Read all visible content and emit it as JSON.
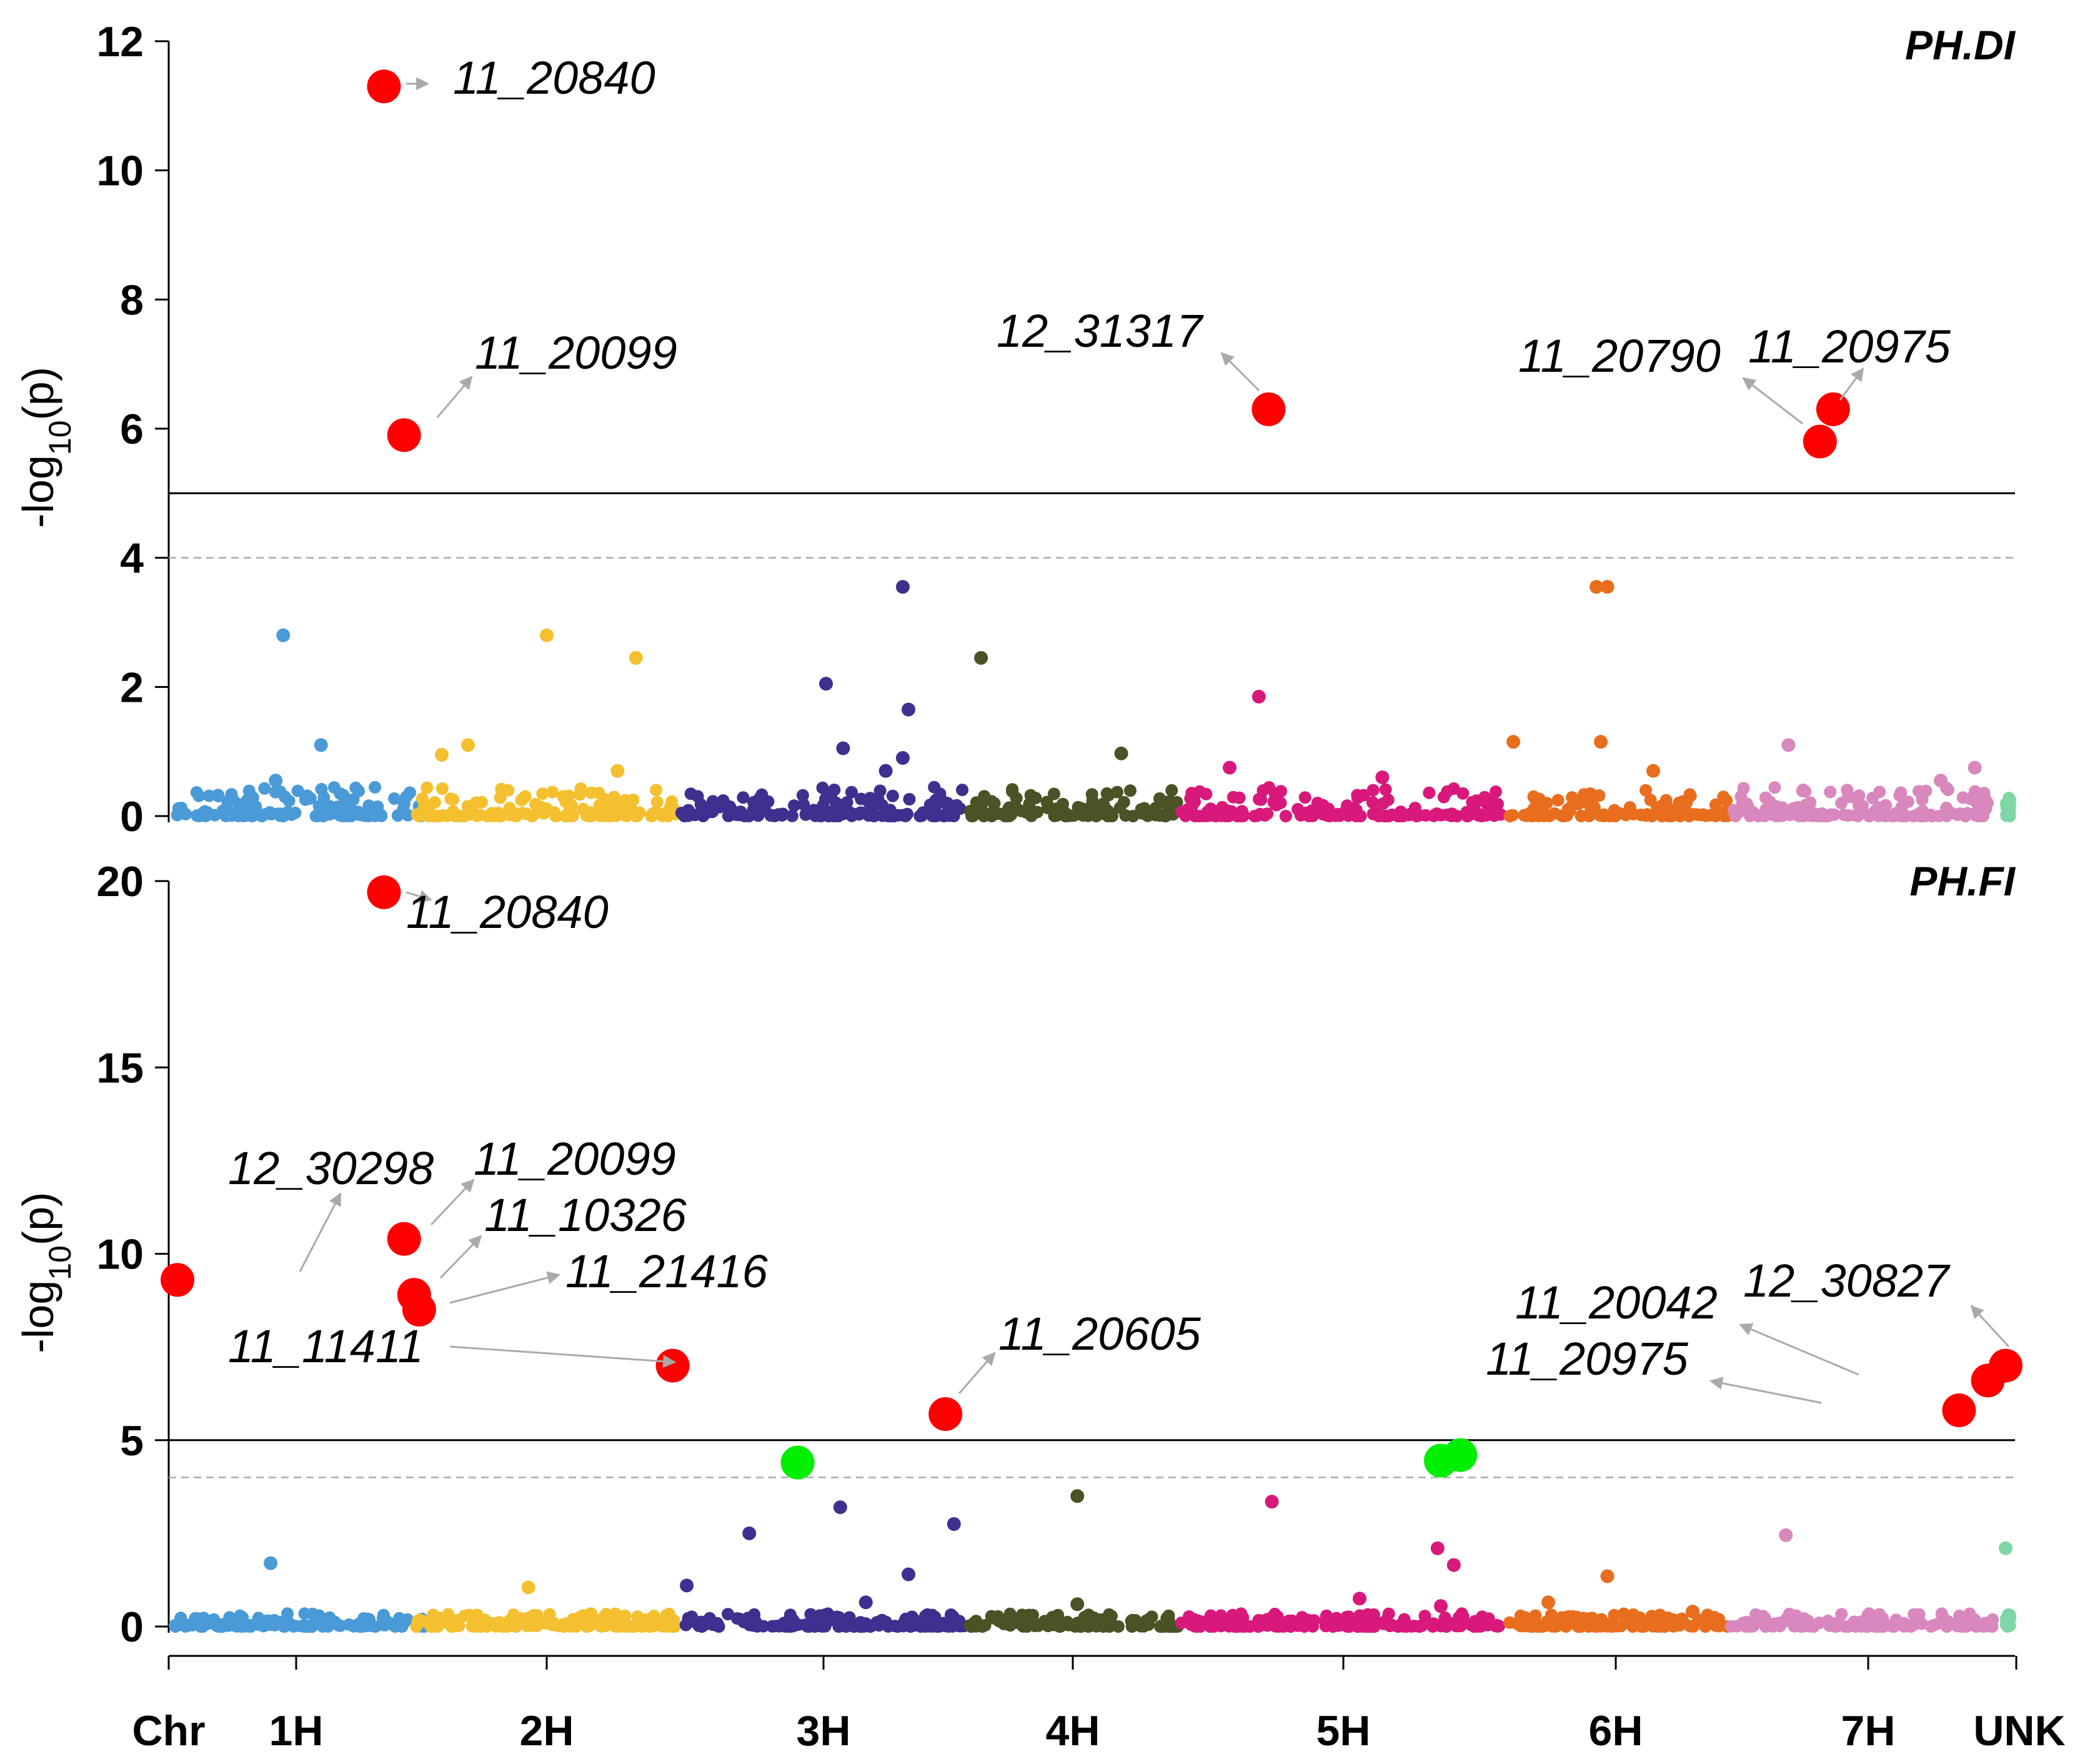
{
  "chart_data": {
    "type": "scatter",
    "subtype": "manhattan",
    "colors": {
      "1H": "#4a9ad8",
      "2H": "#f4c030",
      "3H": "#3f2f8e",
      "4H": "#4a5226",
      "5H": "#d8187a",
      "6H": "#e86e1e",
      "7H": "#d888bc",
      "UNK": "#7fd6a6",
      "significant": "#ff0000",
      "suggestive": "#00ee00",
      "reference_line": "#000000",
      "threshold_line": "#aaaaaa"
    },
    "chromosomes": [
      "1H",
      "2H",
      "3H",
      "4H",
      "5H",
      "6H",
      "7H",
      "UNK"
    ],
    "x_axis": {
      "title": "Chr",
      "tick_labels": [
        "1H",
        "2H",
        "3H",
        "4H",
        "5H",
        "6H",
        "7H",
        "UNK"
      ]
    },
    "panels": [
      {
        "title": "PH.DI",
        "ylabel": "-log10(p)",
        "ylim": [
          0,
          12
        ],
        "yticks": [
          0,
          2,
          4,
          6,
          8,
          10,
          12
        ],
        "significance_line": 5,
        "suggestive_line": 4,
        "hits": [
          {
            "snp": "11_20840",
            "chr": "1H",
            "pos": 0.83,
            "logp": 11.3,
            "color": "red"
          },
          {
            "snp": "11_20099",
            "chr": "1H",
            "pos": 0.91,
            "logp": 5.9,
            "color": "red"
          },
          {
            "snp": "12_31317",
            "chr": "5H",
            "pos": 0.27,
            "logp": 6.3,
            "color": "red"
          },
          {
            "snp": "11_20790",
            "chr": "7H",
            "pos": 0.34,
            "logp": 5.8,
            "color": "red"
          },
          {
            "snp": "11_20975",
            "chr": "7H",
            "pos": 0.39,
            "logp": 6.3,
            "color": "red"
          }
        ],
        "background": [
          {
            "chr": "1H",
            "pos": 0.43,
            "logp": 2.8
          },
          {
            "chr": "1H",
            "pos": 0.58,
            "logp": 1.1
          },
          {
            "chr": "1H",
            "pos": 0.4,
            "logp": 0.55
          },
          {
            "chr": "2H",
            "pos": 0.5,
            "logp": 2.8
          },
          {
            "chr": "2H",
            "pos": 0.84,
            "logp": 2.45
          },
          {
            "chr": "2H",
            "pos": 0.2,
            "logp": 1.1
          },
          {
            "chr": "2H",
            "pos": 0.1,
            "logp": 0.95
          },
          {
            "chr": "2H",
            "pos": 0.77,
            "logp": 0.7
          },
          {
            "chr": "3H",
            "pos": 0.78,
            "logp": 3.55
          },
          {
            "chr": "3H",
            "pos": 0.51,
            "logp": 2.05
          },
          {
            "chr": "3H",
            "pos": 0.8,
            "logp": 1.65
          },
          {
            "chr": "3H",
            "pos": 0.57,
            "logp": 1.05
          },
          {
            "chr": "3H",
            "pos": 0.78,
            "logp": 0.9
          },
          {
            "chr": "3H",
            "pos": 0.72,
            "logp": 0.7
          },
          {
            "chr": "4H",
            "pos": 0.06,
            "logp": 2.45
          },
          {
            "chr": "4H",
            "pos": 0.73,
            "logp": 0.97
          },
          {
            "chr": "5H",
            "pos": 0.24,
            "logp": 1.85
          },
          {
            "chr": "5H",
            "pos": 0.15,
            "logp": 0.75
          },
          {
            "chr": "5H",
            "pos": 0.62,
            "logp": 0.6
          },
          {
            "chr": "6H",
            "pos": 0.4,
            "logp": 3.55
          },
          {
            "chr": "6H",
            "pos": 0.45,
            "logp": 3.55
          },
          {
            "chr": "6H",
            "pos": 0.02,
            "logp": 1.15
          },
          {
            "chr": "6H",
            "pos": 0.42,
            "logp": 1.15
          },
          {
            "chr": "6H",
            "pos": 0.66,
            "logp": 0.7
          },
          {
            "chr": "7H",
            "pos": 0.22,
            "logp": 1.1
          },
          {
            "chr": "7H",
            "pos": 0.8,
            "logp": 0.55
          },
          {
            "chr": "7H",
            "pos": 0.93,
            "logp": 0.75
          }
        ]
      },
      {
        "title": "PH.FI",
        "ylabel": "-log10(p)",
        "ylim": [
          0,
          20
        ],
        "yticks": [
          0,
          5,
          10,
          15,
          20
        ],
        "significance_line": 5,
        "suggestive_line": 4,
        "hits": [
          {
            "snp": "11_20840",
            "chr": "1H",
            "pos": 0.83,
            "logp": 19.7,
            "color": "red"
          },
          {
            "snp": "12_30298",
            "chr": "1H",
            "pos": 0.01,
            "logp": 9.3,
            "color": "red"
          },
          {
            "snp": "11_20099",
            "chr": "1H",
            "pos": 0.91,
            "logp": 10.4,
            "color": "red"
          },
          {
            "snp": "11_10326",
            "chr": "1H",
            "pos": 0.95,
            "logp": 8.9,
            "color": "red"
          },
          {
            "snp": "11_21416",
            "chr": "1H",
            "pos": 0.97,
            "logp": 8.5,
            "color": "red"
          },
          {
            "snp": "11_11411",
            "chr": "2H",
            "pos": 0.98,
            "logp": 7.0,
            "color": "red"
          },
          {
            "snp": "11_20605",
            "chr": "3H",
            "pos": 0.93,
            "logp": 5.7,
            "color": "red"
          },
          {
            "snp": "11_20042",
            "chr": "7H",
            "pos": 0.98,
            "logp": 6.6,
            "color": "red"
          },
          {
            "snp": "11_20975",
            "chr": "7H",
            "pos": 0.87,
            "logp": 5.8,
            "color": "red"
          },
          {
            "snp": "12_30827",
            "chr": "UNK",
            "pos": 0.0,
            "logp": 7.0,
            "color": "red"
          },
          {
            "snp": "",
            "chr": "3H",
            "pos": 0.41,
            "logp": 4.4,
            "color": "green"
          },
          {
            "snp": "",
            "chr": "5H",
            "pos": 0.8,
            "logp": 4.45,
            "color": "green"
          },
          {
            "snp": "",
            "chr": "5H",
            "pos": 0.86,
            "logp": 4.6,
            "color": "green"
          }
        ],
        "background": [
          {
            "chr": "1H",
            "pos": 0.38,
            "logp": 1.7
          },
          {
            "chr": "2H",
            "pos": 0.43,
            "logp": 1.05
          },
          {
            "chr": "3H",
            "pos": 0.02,
            "logp": 1.1
          },
          {
            "chr": "3H",
            "pos": 0.24,
            "logp": 2.5
          },
          {
            "chr": "3H",
            "pos": 0.56,
            "logp": 3.2
          },
          {
            "chr": "3H",
            "pos": 0.65,
            "logp": 0.65
          },
          {
            "chr": "3H",
            "pos": 0.8,
            "logp": 1.4
          },
          {
            "chr": "3H",
            "pos": 0.96,
            "logp": 2.75
          },
          {
            "chr": "4H",
            "pos": 0.52,
            "logp": 3.5
          },
          {
            "chr": "4H",
            "pos": 0.52,
            "logp": 0.6
          },
          {
            "chr": "5H",
            "pos": 0.28,
            "logp": 3.35
          },
          {
            "chr": "5H",
            "pos": 0.55,
            "logp": 0.75
          },
          {
            "chr": "5H",
            "pos": 0.79,
            "logp": 2.1
          },
          {
            "chr": "5H",
            "pos": 0.84,
            "logp": 1.65
          },
          {
            "chr": "5H",
            "pos": 0.8,
            "logp": 0.55
          },
          {
            "chr": "6H",
            "pos": 0.18,
            "logp": 0.65
          },
          {
            "chr": "6H",
            "pos": 0.45,
            "logp": 1.35
          },
          {
            "chr": "6H",
            "pos": 0.84,
            "logp": 0.4
          },
          {
            "chr": "7H",
            "pos": 0.21,
            "logp": 2.45
          },
          {
            "chr": "UNK",
            "pos": 0.0,
            "logp": 2.1
          }
        ]
      }
    ]
  }
}
